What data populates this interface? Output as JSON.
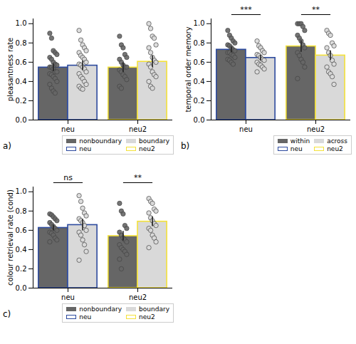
{
  "chart_data": [
    {
      "type": "bar",
      "title": "a)",
      "y_label": "pleasantness rate",
      "categories": [
        "neu",
        "neu2"
      ],
      "category_colors": [
        "#2c4a9e",
        "#f4e23a"
      ],
      "series": [
        {
          "name": "nonboundary",
          "color": "#666666",
          "values": [
            0.545,
            0.545
          ],
          "errors": [
            0.04,
            0.05
          ],
          "points": [
            [
              0.9,
              0.85,
              0.72,
              0.7,
              0.68,
              0.65,
              0.63,
              0.6,
              0.58,
              0.57,
              0.55,
              0.55,
              0.53,
              0.5,
              0.5,
              0.48,
              0.47,
              0.45,
              0.43,
              0.4,
              0.37,
              0.33,
              0.3,
              0.28
            ],
            [
              0.87,
              0.78,
              0.75,
              0.68,
              0.65,
              0.63,
              0.6,
              0.57,
              0.55,
              0.55,
              0.52,
              0.5,
              0.47,
              0.45,
              0.42,
              0.35,
              0.33
            ]
          ]
        },
        {
          "name": "boundary",
          "color": "#d9d9d9",
          "values": [
            0.565,
            0.605
          ],
          "errors": [
            0.05,
            0.06
          ],
          "points": [
            [
              0.93,
              0.83,
              0.78,
              0.75,
              0.72,
              0.7,
              0.67,
              0.65,
              0.63,
              0.6,
              0.58,
              0.57,
              0.55,
              0.53,
              0.5,
              0.48,
              0.45,
              0.43,
              0.4,
              0.37,
              0.35,
              0.33,
              0.32
            ],
            [
              1.0,
              0.95,
              0.87,
              0.85,
              0.78,
              0.75,
              0.7,
              0.65,
              0.62,
              0.6,
              0.58,
              0.55,
              0.5,
              0.47,
              0.45,
              0.4,
              0.35,
              0.33
            ]
          ]
        }
      ],
      "ylim": [
        0,
        1.05
      ],
      "yticks": [
        {
          "value": 0,
          "label": "0.0"
        },
        0.2,
        0.4,
        0.6,
        0.8,
        {
          "value": 1,
          "label": "1.0"
        }
      ],
      "legend": "bottom",
      "annotations": []
    },
    {
      "type": "bar",
      "title": "b)",
      "y_label": "temporal order memory",
      "categories": [
        "neu",
        "neu2"
      ],
      "category_colors": [
        "#2c4a9e",
        "#f4e23a"
      ],
      "series": [
        {
          "name": "within",
          "color": "#666666",
          "values": [
            0.73,
            0.765
          ],
          "errors": [
            0.03,
            0.06
          ],
          "points": [
            [
              0.93,
              0.88,
              0.85,
              0.82,
              0.8,
              0.78,
              0.77,
              0.75,
              0.73,
              0.72,
              0.7,
              0.7,
              0.68,
              0.67,
              0.65,
              0.63,
              0.62,
              0.6,
              0.58
            ],
            [
              1.0,
              1.0,
              1.0,
              0.97,
              0.93,
              0.88,
              0.85,
              0.82,
              0.78,
              0.75,
              0.7,
              0.67,
              0.63,
              0.6,
              0.55,
              0.43
            ]
          ]
        },
        {
          "name": "across",
          "color": "#d9d9d9",
          "values": [
            0.645,
            0.67
          ],
          "errors": [
            0.03,
            0.05
          ],
          "points": [
            [
              0.82,
              0.77,
              0.75,
              0.72,
              0.7,
              0.68,
              0.67,
              0.65,
              0.63,
              0.62,
              0.6,
              0.58,
              0.57,
              0.55,
              0.53,
              0.5
            ],
            [
              0.93,
              0.9,
              0.88,
              0.8,
              0.77,
              0.75,
              0.7,
              0.67,
              0.62,
              0.58,
              0.55,
              0.5,
              0.48,
              0.45,
              0.37
            ]
          ]
        }
      ],
      "ylim": [
        0,
        1.05
      ],
      "yticks": [
        {
          "value": 0,
          "label": "0.0"
        },
        0.2,
        0.4,
        0.6,
        0.8,
        {
          "value": 1,
          "label": "1.0"
        }
      ],
      "legend": "bottom",
      "annotations": [
        {
          "category": "neu",
          "text": "***"
        },
        {
          "category": "neu2",
          "text": "**"
        }
      ]
    },
    {
      "type": "bar",
      "title": "c)",
      "y_label": "colour retrieval rate (cond)",
      "categories": [
        "neu",
        "neu2"
      ],
      "category_colors": [
        "#2c4a9e",
        "#f4e23a"
      ],
      "series": [
        {
          "name": "nonboundary",
          "color": "#666666",
          "values": [
            0.625,
            0.54
          ],
          "errors": [
            0.03,
            0.05
          ],
          "points": [
            [
              0.77,
              0.76,
              0.74,
              0.72,
              0.7,
              0.68,
              0.66,
              0.64,
              0.62,
              0.6,
              0.58,
              0.57,
              0.55,
              0.52,
              0.5,
              0.48
            ],
            [
              0.88,
              0.8,
              0.77,
              0.65,
              0.62,
              0.58,
              0.55,
              0.52,
              0.5,
              0.48,
              0.45,
              0.42,
              0.4,
              0.38,
              0.35,
              0.3,
              0.2
            ]
          ]
        },
        {
          "name": "boundary",
          "color": "#d9d9d9",
          "values": [
            0.655,
            0.69
          ],
          "errors": [
            0.06,
            0.05
          ],
          "points": [
            [
              0.96,
              0.9,
              0.83,
              0.78,
              0.75,
              0.72,
              0.7,
              0.68,
              0.65,
              0.6,
              0.58,
              0.55,
              0.5,
              0.45,
              0.38,
              0.29
            ],
            [
              0.93,
              0.9,
              0.88,
              0.82,
              0.8,
              0.78,
              0.73,
              0.7,
              0.67,
              0.65,
              0.62,
              0.6,
              0.55,
              0.52,
              0.48,
              0.42
            ]
          ]
        }
      ],
      "ylim": [
        0,
        1.05
      ],
      "yticks": [
        {
          "value": 0,
          "label": "0.0"
        },
        0.2,
        0.4,
        0.6,
        0.8,
        {
          "value": 1,
          "label": "1.0"
        }
      ],
      "legend": "bottom",
      "annotations": [
        {
          "category": "neu",
          "text": "ns"
        },
        {
          "category": "neu2",
          "text": "**"
        }
      ]
    }
  ]
}
